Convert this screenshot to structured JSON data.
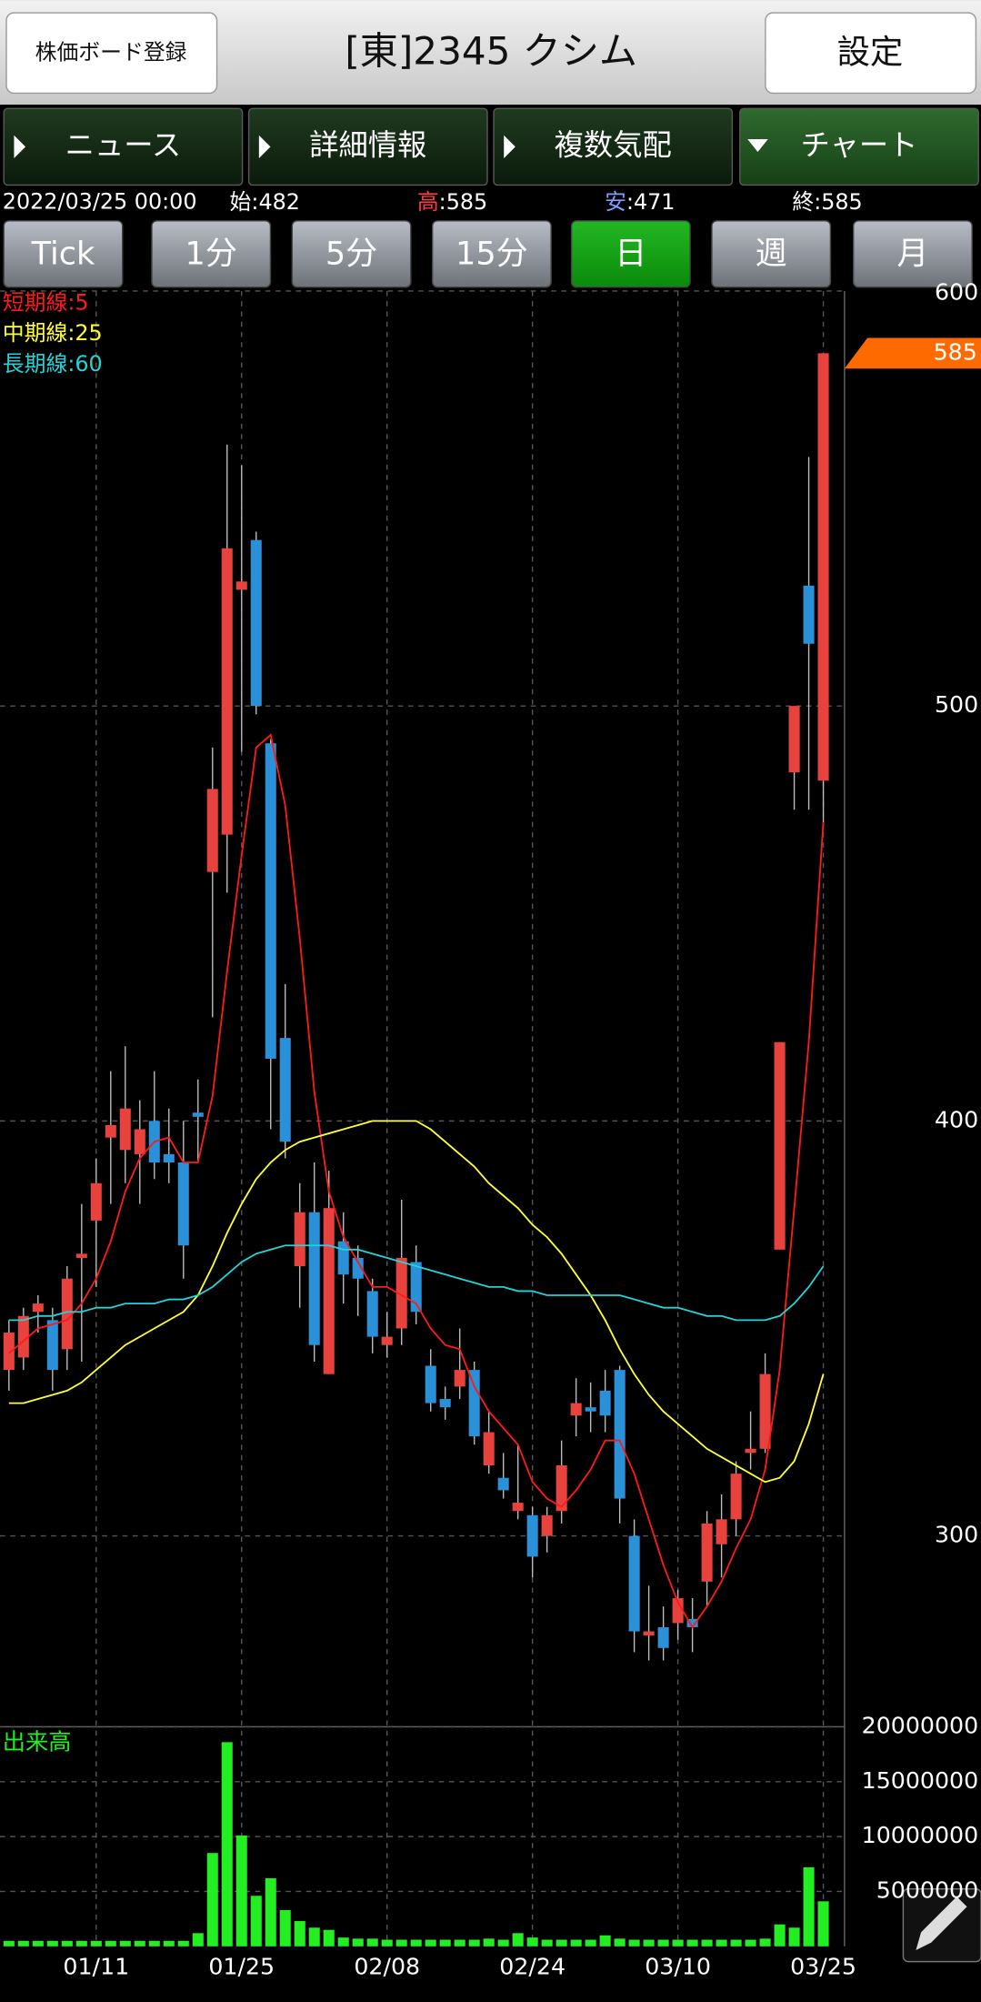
{
  "header": {
    "register_button": "株価ボード登録",
    "title": "[東]2345 クシム",
    "settings_button": "設定"
  },
  "tabs": [
    "ニュース",
    "詳細情報",
    "複数気配",
    "チャート"
  ],
  "active_tab": 3,
  "summary": {
    "datetime": "2022/03/25 00:00",
    "items": [
      {
        "label": "始",
        "text": ":482",
        "color": "#ffffff"
      },
      {
        "label": "高",
        "text": ":585",
        "color": "#ff3b3b"
      },
      {
        "label": "安",
        "text": ":471",
        "color": "#7f9cff"
      },
      {
        "label": "終",
        "text": ":585",
        "color": "#ffffff"
      }
    ]
  },
  "periods": [
    "Tick",
    "1分",
    "5分",
    "15分",
    "日",
    "週",
    "月"
  ],
  "active_period": 4,
  "chart_data": [
    {
      "type": "candlestick",
      "categories": [
        null,
        null,
        null,
        null,
        null,
        null,
        "01/11",
        null,
        null,
        null,
        null,
        null,
        null,
        null,
        null,
        null,
        "01/25",
        null,
        null,
        null,
        null,
        null,
        null,
        null,
        null,
        null,
        "02/08",
        null,
        null,
        null,
        null,
        null,
        null,
        null,
        null,
        null,
        "02/24",
        null,
        null,
        null,
        null,
        null,
        null,
        null,
        null,
        null,
        "03/10",
        null,
        null,
        null,
        null,
        null,
        null,
        null,
        null,
        null,
        "03/25"
      ],
      "open": [
        340,
        343,
        354,
        352,
        345,
        367,
        376,
        396,
        393,
        392,
        400,
        392,
        390,
        402,
        460,
        469,
        528,
        540,
        491,
        420,
        365,
        378,
        339,
        371,
        367,
        359,
        346,
        350,
        366,
        341,
        333,
        336,
        340,
        317,
        314,
        306,
        305,
        300,
        306,
        329,
        331,
        335,
        340,
        300,
        276,
        278,
        279,
        280,
        289,
        298,
        304,
        320,
        321,
        369,
        484,
        529,
        482
      ],
      "high": [
        352,
        355,
        358,
        355,
        365,
        380,
        391,
        412,
        418,
        405,
        412,
        403,
        400,
        410,
        490,
        563,
        558,
        542,
        492,
        433,
        385,
        390,
        388,
        378,
        370,
        362,
        354,
        381,
        370,
        345,
        336,
        350,
        342,
        330,
        320,
        322,
        307,
        307,
        323,
        338,
        337,
        340,
        341,
        304,
        288,
        283,
        287,
        285,
        306,
        310,
        318,
        330,
        344,
        419,
        500,
        560,
        585
      ],
      "low": [
        335,
        340,
        349,
        335,
        340,
        342,
        360,
        380,
        385,
        380,
        386,
        385,
        362,
        390,
        425,
        455,
        489,
        498,
        398,
        391,
        355,
        342,
        339,
        356,
        353,
        344,
        343,
        346,
        351,
        330,
        328,
        333,
        322,
        315,
        309,
        304,
        290,
        296,
        303,
        324,
        325,
        325,
        303,
        272,
        270,
        270,
        275,
        272,
        283,
        290,
        300,
        316,
        320,
        369,
        475,
        475,
        471
      ],
      "close": [
        349,
        353,
        356,
        340,
        362,
        368,
        385,
        399,
        403,
        398,
        390,
        390,
        370,
        401,
        480,
        538,
        530,
        500,
        415,
        395,
        378,
        346,
        379,
        363,
        362,
        348,
        348,
        367,
        354,
        332,
        331,
        340,
        324,
        325,
        311,
        308,
        295,
        305,
        317,
        332,
        330,
        329,
        309,
        277,
        277,
        273,
        285,
        278,
        303,
        304,
        315,
        321,
        339,
        419,
        500,
        515,
        585
      ],
      "up_color": "#e8423f",
      "down_color": "#2a90d8",
      "ylim": [
        254,
        600
      ],
      "yticks": [
        300,
        400,
        500,
        600
      ],
      "grid": true,
      "last_price": 585,
      "last_price_color": "#ff6a00",
      "series": [
        {
          "name": "短期線:5",
          "color": "#ff1a1a",
          "values": [
            344,
            347,
            350,
            351,
            352,
            356,
            362,
            371,
            383,
            391,
            395,
            396,
            390,
            390,
            406,
            436,
            464,
            490,
            493,
            476,
            444,
            407,
            383,
            372,
            366,
            360,
            360,
            358,
            356,
            350,
            346,
            345,
            336,
            330,
            326,
            322,
            313,
            309,
            307,
            311,
            316,
            323,
            323,
            315,
            304,
            293,
            284,
            278,
            283,
            289,
            297,
            304,
            316,
            340,
            379,
            419,
            472
          ]
        },
        {
          "name": "中期線:25",
          "color": "#ffff33",
          "values": [
            332,
            332,
            333,
            334,
            335,
            337,
            340,
            343,
            346,
            348,
            350,
            352,
            354,
            358,
            365,
            373,
            380,
            386,
            390,
            393,
            395,
            396,
            397,
            398,
            399,
            400,
            400,
            400,
            400,
            398,
            395,
            392,
            389,
            385,
            382,
            379,
            375,
            372,
            368,
            363,
            358,
            352,
            345,
            339,
            334,
            330,
            327,
            324,
            321,
            319,
            317,
            315,
            313,
            314,
            318,
            327,
            339
          ]
        },
        {
          "name": "長期線:60",
          "color": "#22d3d8",
          "values": [
            352,
            352,
            353,
            353,
            354,
            354,
            355,
            355,
            356,
            356,
            356,
            357,
            357,
            358,
            360,
            363,
            366,
            368,
            369,
            370,
            370,
            370,
            370,
            369,
            369,
            368,
            367,
            366,
            365,
            364,
            363,
            362,
            361,
            360,
            360,
            359,
            359,
            358,
            358,
            358,
            358,
            358,
            358,
            357,
            356,
            355,
            355,
            354,
            353,
            353,
            352,
            352,
            352,
            353,
            356,
            360,
            365
          ]
        }
      ]
    },
    {
      "type": "bar",
      "title": "出来高",
      "color": "#22ee22",
      "values": [
        500000,
        500000,
        500000,
        500000,
        500000,
        500000,
        500000,
        500000,
        500000,
        500000,
        500000,
        500000,
        500000,
        1200000,
        8500000,
        18600000,
        10100000,
        4600000,
        6200000,
        3300000,
        2300000,
        1700000,
        1500000,
        800000,
        700000,
        700000,
        600000,
        600000,
        600000,
        600000,
        600000,
        600000,
        600000,
        700000,
        600000,
        1200000,
        800000,
        600000,
        600000,
        600000,
        600000,
        1000000,
        700000,
        600000,
        600000,
        600000,
        600000,
        600000,
        600000,
        600000,
        600000,
        600000,
        700000,
        2000000,
        1700000,
        7200000,
        4100000
      ],
      "ylim": [
        0,
        20000000
      ],
      "yticks": [
        5000000,
        10000000,
        15000000,
        20000000
      ]
    }
  ]
}
